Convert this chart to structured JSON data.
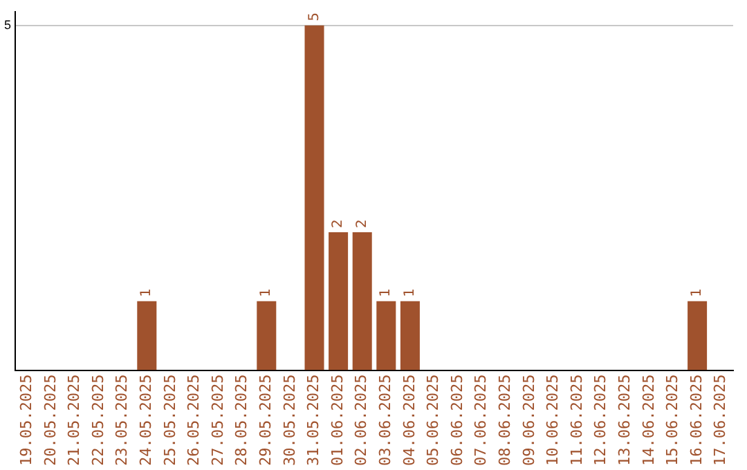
{
  "chart_data": {
    "type": "bar",
    "categories": [
      "19.05.2025",
      "20.05.2025",
      "21.05.2025",
      "22.05.2025",
      "23.05.2025",
      "24.05.2025",
      "25.05.2025",
      "26.05.2025",
      "27.05.2025",
      "28.05.2025",
      "29.05.2025",
      "30.05.2025",
      "31.05.2025",
      "01.06.2025",
      "02.06.2025",
      "03.06.2025",
      "04.06.2025",
      "05.06.2025",
      "06.06.2025",
      "07.06.2025",
      "08.06.2025",
      "09.06.2025",
      "10.06.2025",
      "11.06.2025",
      "12.06.2025",
      "13.06.2025",
      "14.06.2025",
      "15.06.2025",
      "16.06.2025",
      "17.06.2025"
    ],
    "values": [
      0,
      0,
      0,
      0,
      0,
      1,
      0,
      0,
      0,
      0,
      1,
      0,
      5,
      2,
      2,
      1,
      1,
      0,
      0,
      0,
      0,
      0,
      0,
      0,
      0,
      0,
      0,
      0,
      1,
      0
    ],
    "value_labels": [
      null,
      null,
      null,
      null,
      null,
      "1",
      null,
      null,
      null,
      null,
      "1",
      null,
      "5",
      "2",
      "2",
      "1",
      "1",
      null,
      null,
      null,
      null,
      null,
      null,
      null,
      null,
      null,
      null,
      null,
      "1",
      null
    ],
    "color": "#a0522d",
    "ylim": [
      0,
      5.2
    ],
    "yticks": [
      5
    ],
    "grid": "y",
    "legend": false
  }
}
